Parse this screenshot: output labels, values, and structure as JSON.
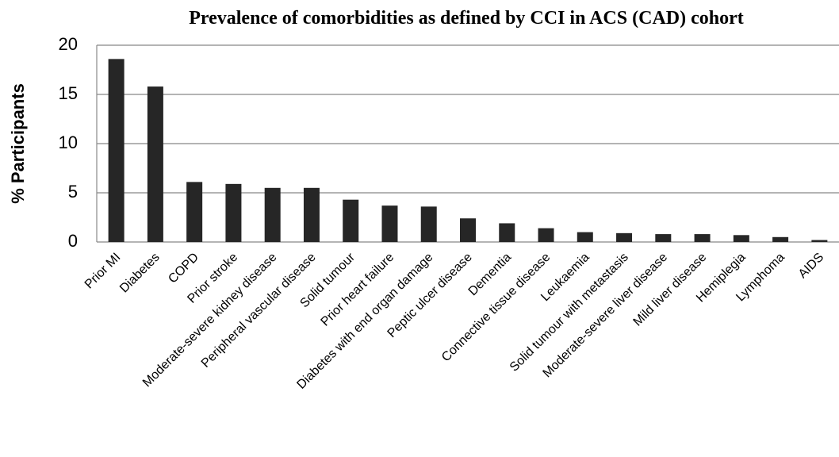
{
  "chart_data": {
    "type": "bar",
    "title": "Prevalence of comorbidities as defined by CCI in ACS (CAD) cohort",
    "y_label": "% Participants",
    "categories": [
      "Prior MI",
      "Diabetes",
      "COPD",
      "Prior stroke",
      "Moderate-severe kidney disease",
      "Peripheral vascular disease",
      "Solid tumour",
      "Prior heart failure",
      "Diabetes with end organ damage",
      "Peptic ulcer disease",
      "Dementia",
      "Connective tissue disease",
      "Leukaemia",
      "Solid tumour with metastasis",
      "Moderate-severe liver disease",
      "Mild liver disease",
      "Hemiplegia",
      "Lymphoma",
      "AIDS"
    ],
    "values": [
      18.6,
      15.8,
      6.1,
      5.9,
      5.5,
      5.5,
      4.3,
      3.7,
      3.6,
      2.4,
      1.9,
      1.4,
      1.0,
      0.9,
      0.8,
      0.8,
      0.7,
      0.5,
      0.2
    ],
    "color": "#262626",
    "ylim": [
      0,
      20
    ],
    "yticks": [
      0,
      5,
      10,
      15,
      20
    ],
    "grid": true
  }
}
